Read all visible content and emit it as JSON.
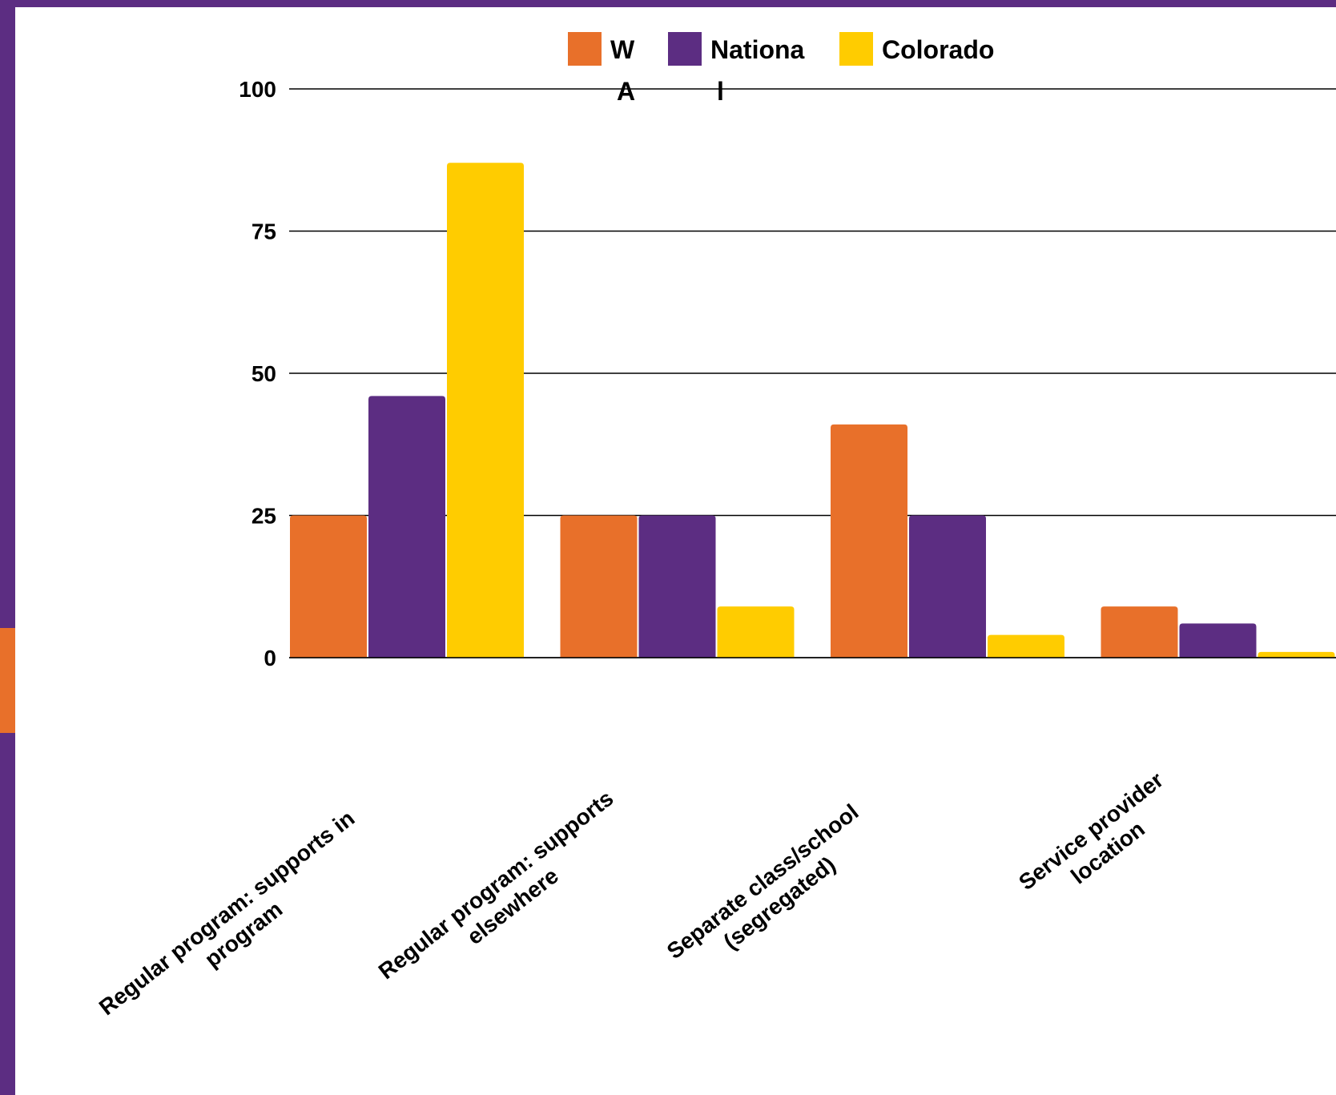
{
  "colors": {
    "background": "#5c2d82",
    "panel": "#ffffff",
    "accent": "#e8702a"
  },
  "chart_data": {
    "type": "bar",
    "categories": [
      "Regular program: supports in program",
      "Regular program: supports elsewhere",
      "Separate class/school (segregated)",
      "Service provider location"
    ],
    "category_lines": [
      [
        "Regular program: supports in",
        "program"
      ],
      [
        "Regular program: supports",
        "elsewhere"
      ],
      [
        "Separate class/school",
        "(segregated)"
      ],
      [
        "Service provider",
        "location"
      ]
    ],
    "series": [
      {
        "name": "WA",
        "legend_lines": [
          "W",
          "A"
        ],
        "color": "#e8702a",
        "values": [
          25,
          25,
          41,
          9
        ]
      },
      {
        "name": "National",
        "legend_lines": [
          "Nationa",
          "l"
        ],
        "color": "#5c2d82",
        "values": [
          46,
          25,
          25,
          6
        ]
      },
      {
        "name": "Colorado",
        "legend_lines": [
          "Colorado"
        ],
        "color": "#ffcc00",
        "values": [
          87,
          9,
          4,
          1
        ]
      }
    ],
    "yticks": [
      0,
      25,
      50,
      75,
      100
    ],
    "ylim": [
      0,
      100
    ],
    "grid": true,
    "legend_position": "top",
    "title": "",
    "xlabel": "",
    "ylabel": ""
  }
}
